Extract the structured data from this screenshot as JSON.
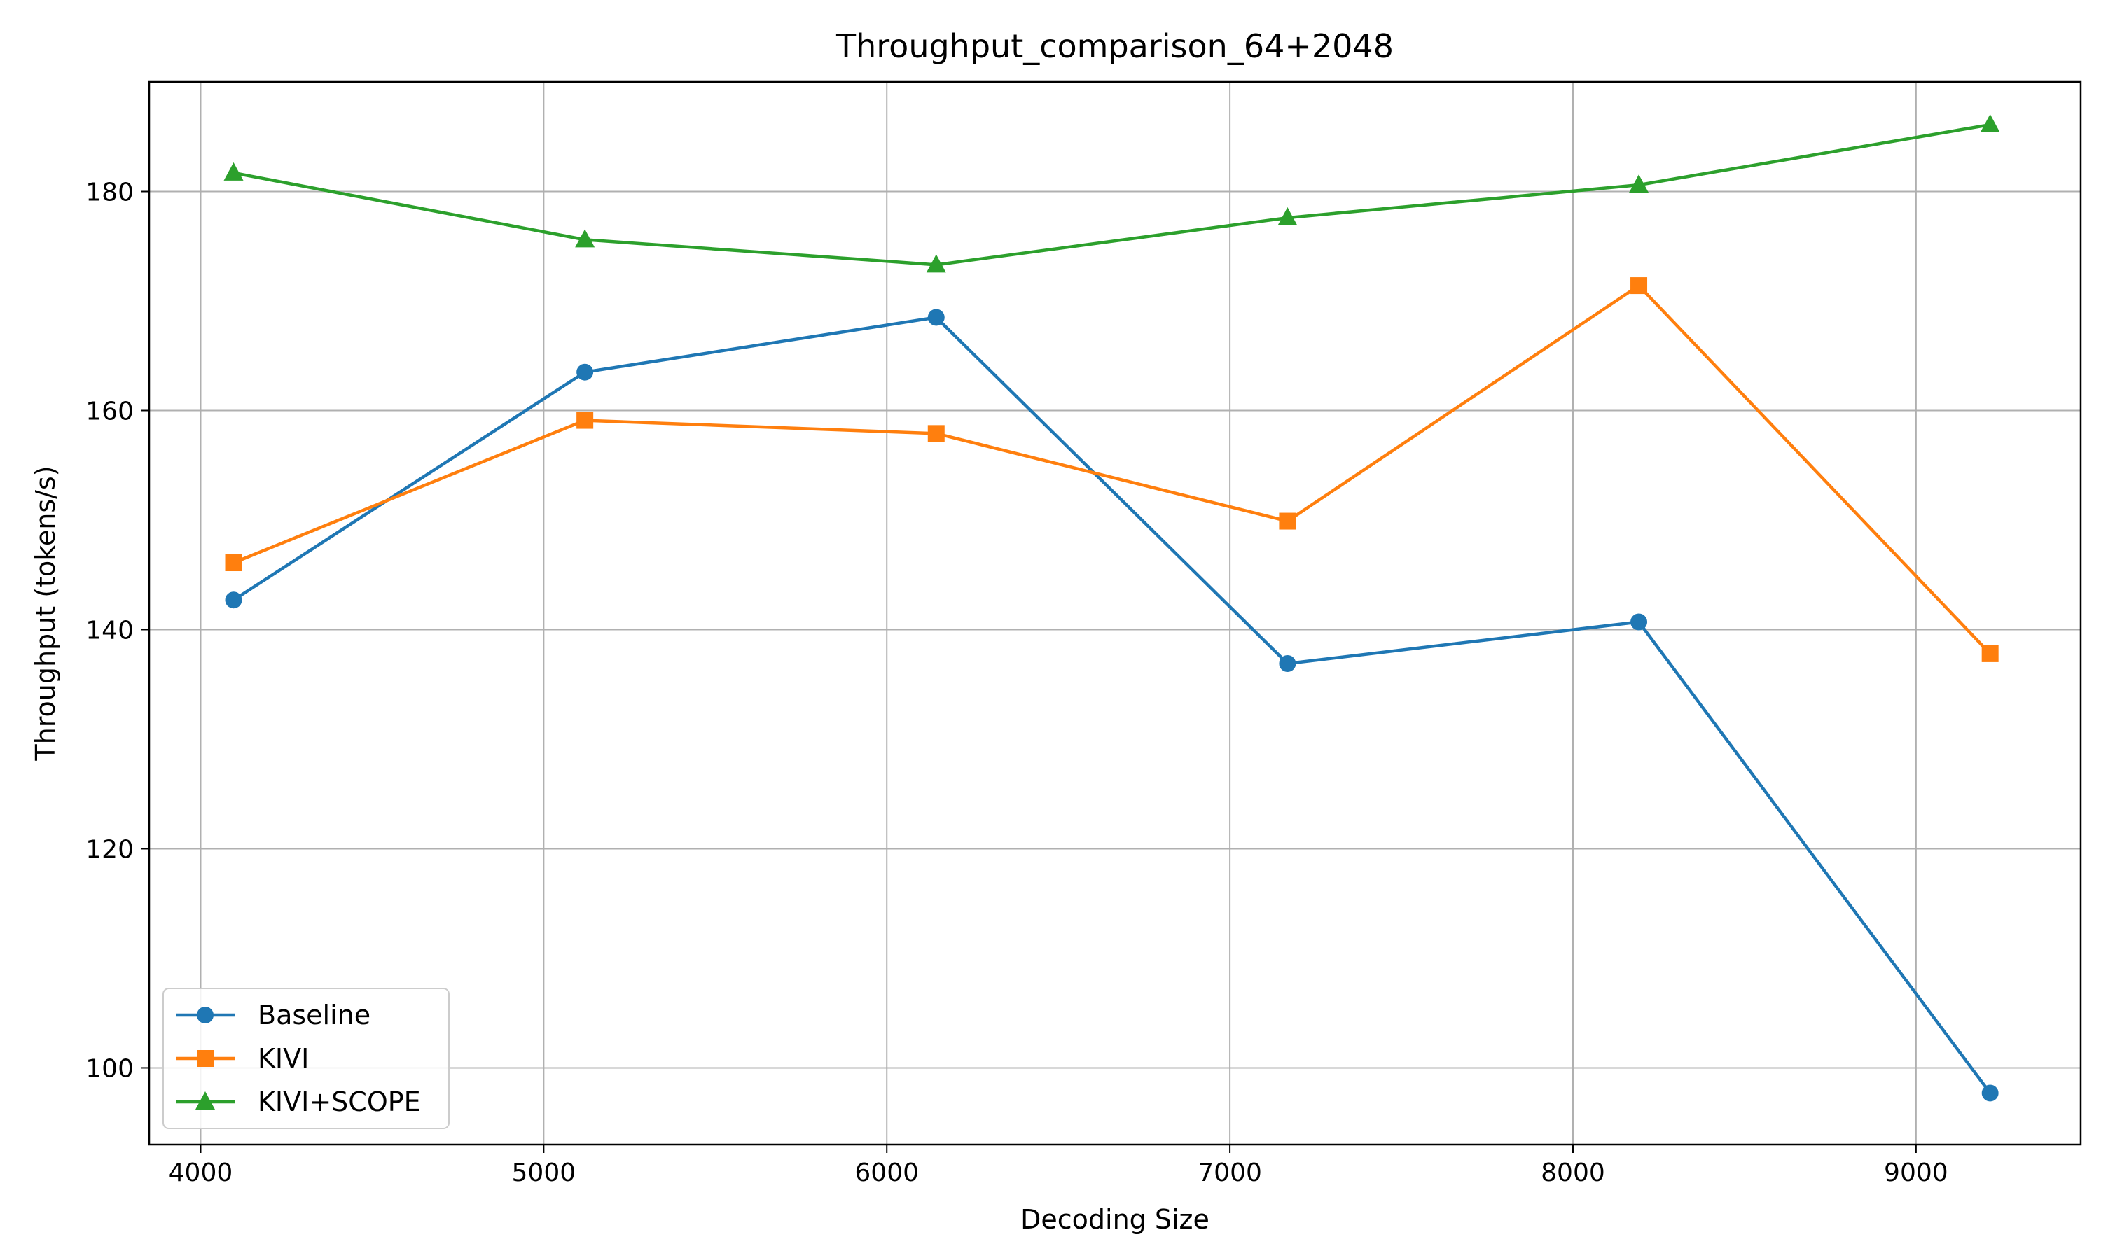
{
  "chart_data": {
    "type": "line",
    "title": "Throughput_comparison_64+2048",
    "xlabel": "Decoding Size",
    "ylabel": "Throughput (tokens/s)",
    "x": [
      4096,
      5120,
      6144,
      7168,
      8192,
      9216
    ],
    "xlim": [
      3850,
      9480
    ],
    "ylim": [
      93,
      190
    ],
    "xticks": [
      4000,
      5000,
      6000,
      7000,
      8000,
      9000
    ],
    "yticks": [
      100,
      120,
      140,
      160,
      180
    ],
    "grid": true,
    "legend_position": "lower-left",
    "series": [
      {
        "name": "Baseline",
        "values": [
          142.7,
          163.5,
          168.5,
          136.9,
          140.7,
          97.7
        ],
        "color": "#1f77b4",
        "marker": "circle"
      },
      {
        "name": "KIVI",
        "values": [
          146.1,
          159.1,
          157.9,
          149.9,
          171.4,
          137.8
        ],
        "color": "#ff7f0e",
        "marker": "square"
      },
      {
        "name": "KIVI+SCOPE",
        "values": [
          181.7,
          175.6,
          173.3,
          177.6,
          180.6,
          186.1
        ],
        "color": "#2ca02c",
        "marker": "triangle"
      }
    ]
  }
}
